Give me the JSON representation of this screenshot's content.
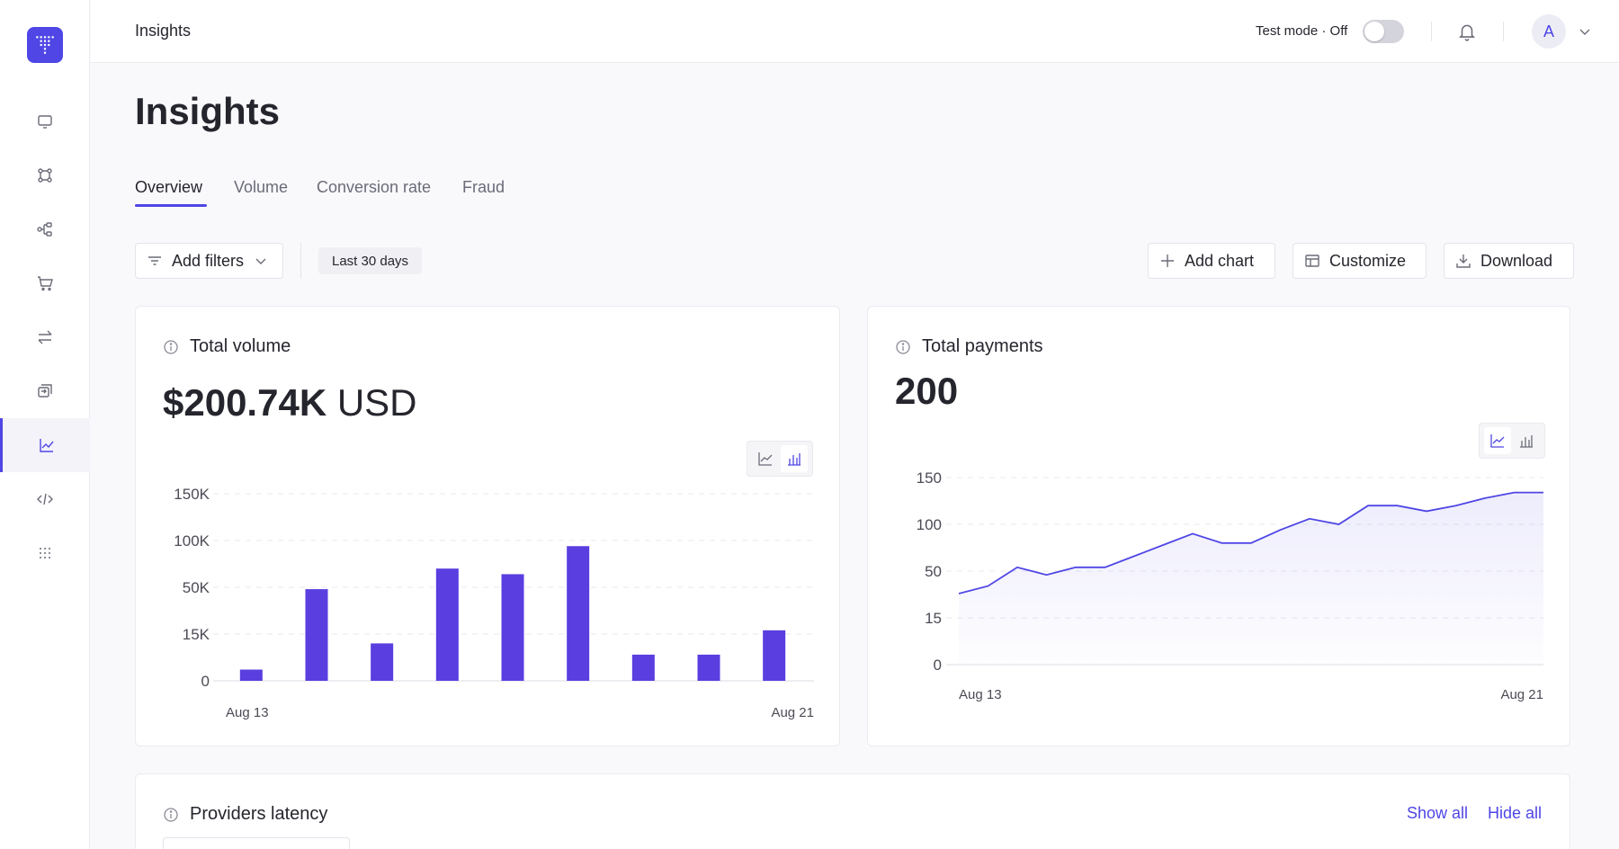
{
  "header": {
    "title": "Insights",
    "test_mode_label": "Test mode · Off",
    "avatar_initial": "A"
  },
  "sidebar": {
    "items": [
      {
        "icon": "monitor-icon"
      },
      {
        "icon": "workflow-icon"
      },
      {
        "icon": "connections-icon"
      },
      {
        "icon": "cart-icon"
      },
      {
        "icon": "transfer-icon"
      },
      {
        "icon": "exchange-icon"
      },
      {
        "icon": "chart-line-icon",
        "active": true
      },
      {
        "icon": "code-icon"
      },
      {
        "icon": "grid-dots-icon"
      }
    ]
  },
  "page": {
    "title": "Insights",
    "tabs": [
      {
        "label": "Overview",
        "active": true
      },
      {
        "label": "Volume"
      },
      {
        "label": "Conversion rate"
      },
      {
        "label": "Fraud"
      }
    ]
  },
  "toolbar": {
    "add_filters": "Add filters",
    "date_range": "Last 30 days",
    "add_chart": "Add chart",
    "customize": "Customize",
    "download": "Download"
  },
  "cards": {
    "total_volume": {
      "title": "Total volume",
      "value": "$200.74K",
      "unit": "USD"
    },
    "total_payments": {
      "title": "Total payments",
      "value": "200"
    },
    "providers_latency": {
      "title": "Providers latency",
      "show_all": "Show all",
      "hide_all": "Hide all"
    }
  },
  "colors": {
    "accent": "#4f46e5",
    "bar": "#5a3ee0"
  },
  "chart_data": [
    {
      "type": "bar",
      "title": "Total volume",
      "ytick_labels": [
        "0",
        "15K",
        "50K",
        "100K",
        "150K"
      ],
      "x_labels": [
        "Aug 13",
        "Aug 21"
      ],
      "values_level": [
        0.06,
        0.49,
        0.2,
        0.6,
        0.57,
        0.72,
        0.14,
        0.14,
        0.27
      ],
      "grid": true
    },
    {
      "type": "area",
      "title": "Total payments",
      "ytick_labels": [
        "0",
        "15",
        "50",
        "100",
        "150"
      ],
      "x_labels": [
        "Aug 13",
        "Aug 21"
      ],
      "values_level": [
        0.38,
        0.42,
        0.52,
        0.48,
        0.52,
        0.52,
        0.58,
        0.64,
        0.7,
        0.65,
        0.65,
        0.72,
        0.78,
        0.75,
        0.85,
        0.85,
        0.82,
        0.85,
        0.89,
        0.92,
        0.92
      ],
      "grid": true
    }
  ]
}
